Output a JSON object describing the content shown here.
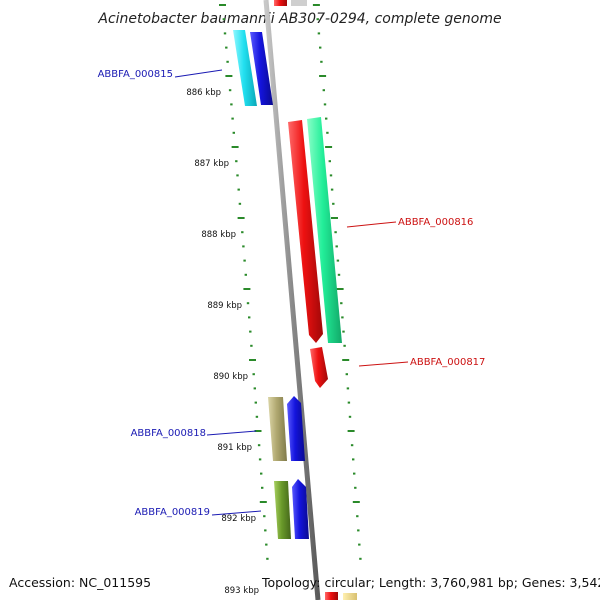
{
  "title": "Acinetobacter baumannii AB307-0294, complete genome",
  "footer": {
    "accession": "Accession: NC_011595",
    "summary": "Topology: circular; Length: 3,760,981 bp; Genes: 3,542"
  },
  "ticks": [
    {
      "label": "886 kbp",
      "kbp": 886
    },
    {
      "label": "887 kbp",
      "kbp": 887
    },
    {
      "label": "888 kbp",
      "kbp": 888
    },
    {
      "label": "889 kbp",
      "kbp": 889
    },
    {
      "label": "890 kbp",
      "kbp": 890
    },
    {
      "label": "891 kbp",
      "kbp": 891
    },
    {
      "label": "892 kbp",
      "kbp": 892
    },
    {
      "label": "893 kbp",
      "kbp": 893
    }
  ],
  "gene_labels": [
    {
      "name": "ABBFA_000815",
      "color": "#1a1ab3"
    },
    {
      "name": "ABBFA_000816",
      "color": "#cc1111"
    },
    {
      "name": "ABBFA_000817",
      "color": "#cc1111"
    },
    {
      "name": "ABBFA_000818",
      "color": "#1a1ab3"
    },
    {
      "name": "ABBFA_000819",
      "color": "#1a1ab3"
    }
  ],
  "colors": {
    "backbone": "#8a8a8a",
    "dotted_ring": "#2a8a2a",
    "cyan_gene": "#22e0f0",
    "blue_gene": "#1414dd",
    "red_gene": "#ee1111",
    "green_gene": "#22ee99",
    "khaki_gene": "#b0a870",
    "olive_gene": "#6a9a2a"
  }
}
